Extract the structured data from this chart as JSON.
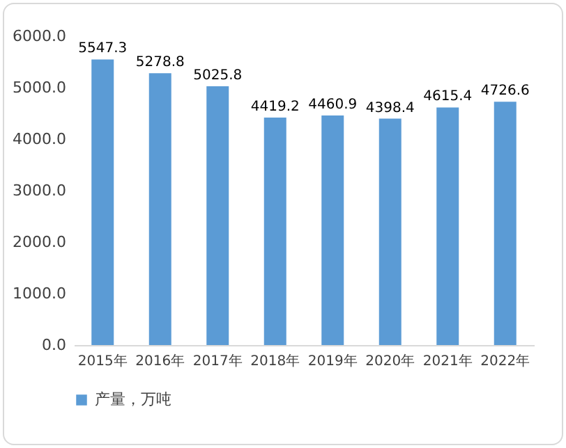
{
  "chart_data": {
    "type": "bar",
    "categories": [
      "2015年",
      "2016年",
      "2017年",
      "2018年",
      "2019年",
      "2020年",
      "2021年",
      "2022年"
    ],
    "series": [
      {
        "name": "产量，万吨",
        "color": "#5b9bd5",
        "values": [
          5547.3,
          5278.8,
          5025.8,
          4419.2,
          4460.9,
          4398.4,
          4615.4,
          4726.6
        ]
      }
    ],
    "ylim": [
      0,
      6000
    ],
    "yticks": [
      {
        "value": 0,
        "label": "0.0"
      },
      {
        "value": 1000,
        "label": "1000.0"
      },
      {
        "value": 2000,
        "label": "2000.0"
      },
      {
        "value": 3000,
        "label": "3000.0"
      },
      {
        "value": 4000,
        "label": "4000.0"
      },
      {
        "value": 5000,
        "label": "5000.0"
      },
      {
        "value": 6000,
        "label": "6000.0"
      }
    ],
    "data_labels": true,
    "legend": "bottom",
    "grid": false
  }
}
